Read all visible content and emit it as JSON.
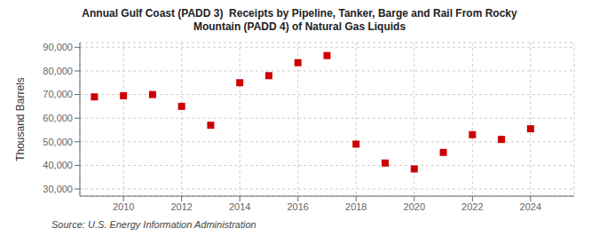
{
  "chart_data": {
    "type": "scatter",
    "title": "Annual Gulf Coast (PADD 3)  Receipts by Pipeline, Tanker, Barge and Rail From Rocky\nMountain (PADD 4) of Natural Gas Liquids",
    "ylabel": "Thousand Barrels",
    "source": "Source: U.S. Energy Information Administration",
    "x": [
      2009,
      2010,
      2011,
      2012,
      2013,
      2014,
      2015,
      2016,
      2017,
      2018,
      2019,
      2020,
      2021,
      2022,
      2023,
      2024
    ],
    "values": [
      69000,
      69500,
      70000,
      65000,
      57000,
      75000,
      78000,
      83500,
      86500,
      49000,
      41000,
      38500,
      45500,
      53000,
      51000,
      55500
    ],
    "color": "#cc0000",
    "marker": "square",
    "grid": true,
    "xlim": [
      2008.5,
      2025.5
    ],
    "xticks": [
      2010,
      2012,
      2014,
      2016,
      2018,
      2020,
      2022,
      2024
    ],
    "ylim": [
      27000,
      92000
    ],
    "yticks": [
      {
        "value": 30000,
        "label": "30,000"
      },
      {
        "value": 40000,
        "label": "40,000"
      },
      {
        "value": 50000,
        "label": "50,000"
      },
      {
        "value": 60000,
        "label": "60,000"
      },
      {
        "value": 70000,
        "label": "70,000"
      },
      {
        "value": 80000,
        "label": "80,000"
      },
      {
        "value": 90000,
        "label": "90,000"
      }
    ]
  }
}
